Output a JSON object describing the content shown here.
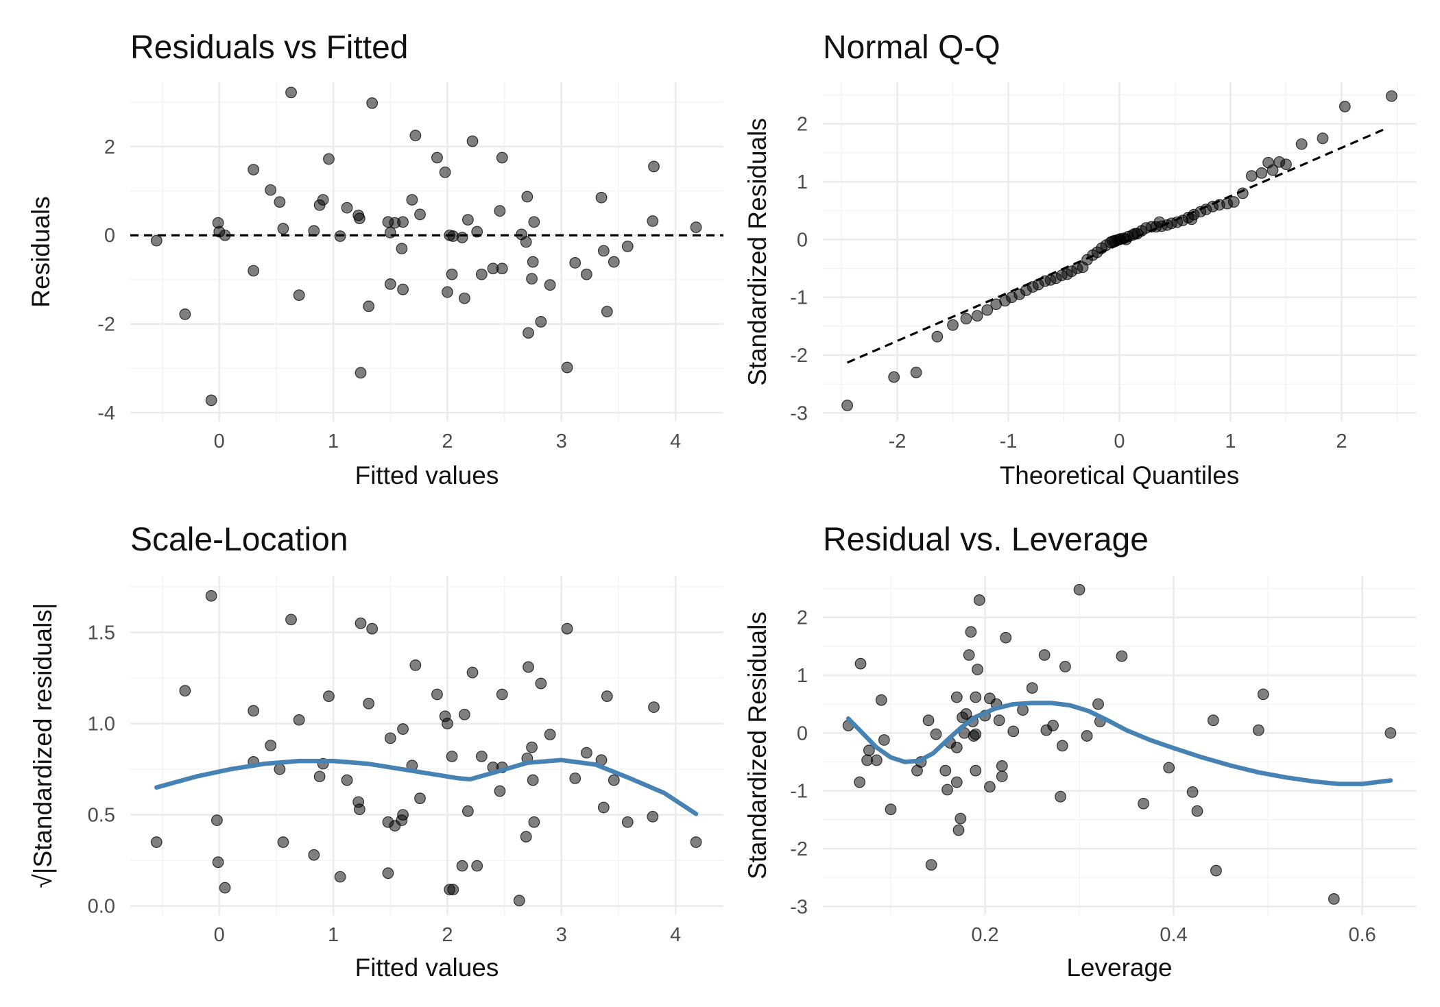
{
  "chart_data": [
    {
      "type": "scatter",
      "title": "Residuals vs Fitted",
      "xlabel": "Fitted values",
      "ylabel": "Residuals",
      "xlim": [
        -0.78,
        4.42
      ],
      "ylim": [
        -4.2,
        3.45
      ],
      "xticks": [
        0,
        1,
        2,
        3,
        4
      ],
      "xtick_labels": [
        "0",
        "1",
        "2",
        "3",
        "4"
      ],
      "yticks": [
        -4,
        -2,
        0,
        2
      ],
      "ytick_labels": [
        "-4",
        "-2",
        "0",
        "2"
      ],
      "grid": true,
      "hline": {
        "y": 0,
        "style": "dashed"
      },
      "point_color": "#000000",
      "points": [
        [
          -0.55,
          -0.12
        ],
        [
          -0.3,
          -1.78
        ],
        [
          -0.07,
          -3.72
        ],
        [
          -0.01,
          0.28
        ],
        [
          0.0,
          0.08
        ],
        [
          0.05,
          0.0
        ],
        [
          0.3,
          1.48
        ],
        [
          0.3,
          -0.8
        ],
        [
          0.45,
          1.02
        ],
        [
          0.53,
          0.75
        ],
        [
          0.56,
          0.15
        ],
        [
          0.63,
          3.22
        ],
        [
          0.7,
          -1.35
        ],
        [
          0.83,
          0.1
        ],
        [
          0.88,
          0.68
        ],
        [
          0.91,
          0.8
        ],
        [
          0.96,
          1.72
        ],
        [
          1.06,
          -0.02
        ],
        [
          1.12,
          0.62
        ],
        [
          1.22,
          0.45
        ],
        [
          1.23,
          0.38
        ],
        [
          1.24,
          -3.1
        ],
        [
          1.31,
          -1.6
        ],
        [
          1.34,
          2.98
        ],
        [
          1.48,
          0.3
        ],
        [
          1.5,
          0.06
        ],
        [
          1.5,
          -1.1
        ],
        [
          1.54,
          0.28
        ],
        [
          1.6,
          -0.3
        ],
        [
          1.61,
          0.3
        ],
        [
          1.61,
          -1.22
        ],
        [
          1.69,
          0.8
        ],
        [
          1.72,
          2.25
        ],
        [
          1.76,
          0.47
        ],
        [
          1.91,
          1.75
        ],
        [
          1.98,
          1.42
        ],
        [
          2.0,
          -1.28
        ],
        [
          2.02,
          0.0
        ],
        [
          2.04,
          -0.88
        ],
        [
          2.05,
          -0.02
        ],
        [
          2.13,
          -0.05
        ],
        [
          2.15,
          -1.42
        ],
        [
          2.18,
          0.35
        ],
        [
          2.22,
          2.12
        ],
        [
          2.26,
          0.08
        ],
        [
          2.3,
          -0.88
        ],
        [
          2.4,
          -0.75
        ],
        [
          2.46,
          0.55
        ],
        [
          2.48,
          -0.75
        ],
        [
          2.48,
          1.75
        ],
        [
          2.65,
          0.02
        ],
        [
          2.69,
          -0.15
        ],
        [
          2.7,
          0.87
        ],
        [
          2.71,
          -2.2
        ],
        [
          2.74,
          -0.98
        ],
        [
          2.75,
          -0.6
        ],
        [
          2.76,
          0.3
        ],
        [
          2.82,
          -1.95
        ],
        [
          2.9,
          -1.12
        ],
        [
          3.05,
          -2.98
        ],
        [
          3.12,
          -0.62
        ],
        [
          3.22,
          -0.88
        ],
        [
          3.35,
          0.85
        ],
        [
          3.37,
          -0.35
        ],
        [
          3.4,
          -1.72
        ],
        [
          3.46,
          -0.6
        ],
        [
          3.58,
          -0.25
        ],
        [
          3.8,
          0.32
        ],
        [
          3.81,
          1.55
        ],
        [
          4.18,
          0.18
        ]
      ]
    },
    {
      "type": "scatter",
      "title": "Normal Q-Q",
      "xlabel": "Theoretical Quantiles",
      "ylabel": "Standardized Residuals",
      "xlim": [
        -2.67,
        2.67
      ],
      "ylim": [
        -3.15,
        2.72
      ],
      "xticks": [
        -2,
        -1,
        0,
        1,
        2
      ],
      "xtick_labels": [
        "-2",
        "-1",
        "0",
        "1",
        "2"
      ],
      "yticks": [
        -3,
        -2,
        -1,
        0,
        1,
        2
      ],
      "ytick_labels": [
        "-3",
        "-2",
        "-1",
        "0",
        "1",
        "2"
      ],
      "grid": true,
      "refline": {
        "x1": -2.45,
        "y1": -2.13,
        "x2": 2.4,
        "y2": 1.92,
        "style": "dashed"
      },
      "points": [
        [
          -2.45,
          -2.87
        ],
        [
          -2.03,
          -2.38
        ],
        [
          -1.83,
          -2.3
        ],
        [
          -1.64,
          -1.68
        ],
        [
          -1.5,
          -1.48
        ],
        [
          -1.38,
          -1.37
        ],
        [
          -1.28,
          -1.32
        ],
        [
          -1.19,
          -1.22
        ],
        [
          -1.11,
          -1.12
        ],
        [
          -1.03,
          -1.06
        ],
        [
          -0.97,
          -1.0
        ],
        [
          -0.9,
          -0.95
        ],
        [
          -0.84,
          -0.88
        ],
        [
          -0.78,
          -0.82
        ],
        [
          -0.73,
          -0.78
        ],
        [
          -0.67,
          -0.72
        ],
        [
          -0.62,
          -0.7
        ],
        [
          -0.57,
          -0.67
        ],
        [
          -0.52,
          -0.62
        ],
        [
          -0.47,
          -0.6
        ],
        [
          -0.43,
          -0.55
        ],
        [
          -0.38,
          -0.5
        ],
        [
          -0.33,
          -0.48
        ],
        [
          -0.29,
          -0.35
        ],
        [
          -0.24,
          -0.27
        ],
        [
          -0.2,
          -0.22
        ],
        [
          -0.16,
          -0.15
        ],
        [
          -0.12,
          -0.1
        ],
        [
          -0.08,
          -0.05
        ],
        [
          -0.04,
          -0.02
        ],
        [
          0.0,
          0.0
        ],
        [
          0.04,
          0.02
        ],
        [
          0.08,
          0.05
        ],
        [
          0.12,
          0.08
        ],
        [
          0.16,
          0.1
        ],
        [
          0.2,
          0.15
        ],
        [
          0.24,
          0.2
        ],
        [
          0.29,
          0.22
        ],
        [
          0.33,
          0.22
        ],
        [
          0.38,
          0.23
        ],
        [
          0.43,
          0.25
        ],
        [
          0.47,
          0.28
        ],
        [
          0.52,
          0.3
        ],
        [
          0.57,
          0.33
        ],
        [
          0.62,
          0.38
        ],
        [
          0.67,
          0.43
        ],
        [
          0.73,
          0.48
        ],
        [
          0.78,
          0.52
        ],
        [
          0.84,
          0.57
        ],
        [
          0.9,
          0.6
        ],
        [
          0.97,
          0.62
        ],
        [
          1.03,
          0.65
        ],
        [
          1.11,
          0.8
        ],
        [
          1.19,
          1.1
        ],
        [
          1.28,
          1.15
        ],
        [
          1.38,
          1.2
        ],
        [
          1.5,
          1.3
        ],
        [
          1.64,
          1.65
        ],
        [
          1.83,
          1.75
        ],
        [
          2.03,
          2.3
        ],
        [
          2.45,
          2.48
        ],
        [
          1.44,
          1.34
        ],
        [
          1.34,
          1.33
        ],
        [
          -0.02,
          -0.01
        ],
        [
          0.01,
          0.01
        ],
        [
          0.36,
          0.3
        ],
        [
          0.06,
          0.0
        ],
        [
          -0.06,
          -0.03
        ],
        [
          0.14,
          0.1
        ],
        [
          0.65,
          0.35
        ]
      ]
    },
    {
      "type": "scatter",
      "title": "Scale-Location",
      "xlabel": "Fitted values",
      "ylabel": "√|Standardized residuals|",
      "xlim": [
        -0.78,
        4.42
      ],
      "ylim": [
        -0.05,
        1.81
      ],
      "xticks": [
        0,
        1,
        2,
        3,
        4
      ],
      "xtick_labels": [
        "0",
        "1",
        "2",
        "3",
        "4"
      ],
      "yticks": [
        0.0,
        0.5,
        1.0,
        1.5
      ],
      "ytick_labels": [
        "0.0",
        "0.5",
        "1.0",
        "1.5"
      ],
      "grid": true,
      "smooth": [
        [
          -0.55,
          0.65
        ],
        [
          -0.2,
          0.71
        ],
        [
          0.1,
          0.75
        ],
        [
          0.4,
          0.78
        ],
        [
          0.7,
          0.795
        ],
        [
          1.0,
          0.795
        ],
        [
          1.3,
          0.78
        ],
        [
          1.6,
          0.75
        ],
        [
          1.9,
          0.72
        ],
        [
          2.1,
          0.7
        ],
        [
          2.2,
          0.695
        ],
        [
          2.4,
          0.73
        ],
        [
          2.7,
          0.785
        ],
        [
          3.0,
          0.8
        ],
        [
          3.3,
          0.775
        ],
        [
          3.6,
          0.7
        ],
        [
          3.9,
          0.62
        ],
        [
          4.18,
          0.505
        ]
      ],
      "smooth_color": "#4682b4",
      "points": [
        [
          -0.55,
          0.35
        ],
        [
          -0.3,
          1.18
        ],
        [
          -0.07,
          1.7
        ],
        [
          -0.02,
          0.47
        ],
        [
          -0.01,
          0.24
        ],
        [
          0.05,
          0.1
        ],
        [
          0.3,
          1.07
        ],
        [
          0.3,
          0.79
        ],
        [
          0.45,
          0.88
        ],
        [
          0.53,
          0.75
        ],
        [
          0.56,
          0.35
        ],
        [
          0.63,
          1.57
        ],
        [
          0.7,
          1.02
        ],
        [
          0.83,
          0.28
        ],
        [
          0.88,
          0.71
        ],
        [
          0.91,
          0.78
        ],
        [
          0.96,
          1.15
        ],
        [
          1.06,
          0.16
        ],
        [
          1.12,
          0.69
        ],
        [
          1.22,
          0.57
        ],
        [
          1.23,
          0.53
        ],
        [
          1.24,
          1.55
        ],
        [
          1.31,
          1.11
        ],
        [
          1.34,
          1.52
        ],
        [
          1.48,
          0.46
        ],
        [
          1.48,
          0.18
        ],
        [
          1.5,
          0.92
        ],
        [
          1.54,
          0.44
        ],
        [
          1.6,
          0.47
        ],
        [
          1.61,
          0.97
        ],
        [
          1.61,
          0.5
        ],
        [
          1.69,
          0.77
        ],
        [
          1.72,
          1.32
        ],
        [
          1.76,
          0.59
        ],
        [
          1.91,
          1.16
        ],
        [
          1.98,
          1.04
        ],
        [
          2.0,
          1.0
        ],
        [
          2.02,
          0.09
        ],
        [
          2.04,
          0.82
        ],
        [
          2.05,
          0.09
        ],
        [
          2.13,
          0.22
        ],
        [
          2.15,
          1.05
        ],
        [
          2.18,
          0.52
        ],
        [
          2.22,
          1.28
        ],
        [
          2.26,
          0.22
        ],
        [
          2.3,
          0.82
        ],
        [
          2.4,
          0.76
        ],
        [
          2.46,
          0.63
        ],
        [
          2.48,
          1.16
        ],
        [
          2.48,
          0.76
        ],
        [
          2.63,
          0.03
        ],
        [
          2.69,
          0.38
        ],
        [
          2.7,
          0.81
        ],
        [
          2.71,
          1.31
        ],
        [
          2.74,
          0.87
        ],
        [
          2.75,
          0.69
        ],
        [
          2.76,
          0.46
        ],
        [
          2.82,
          1.22
        ],
        [
          2.9,
          0.94
        ],
        [
          3.05,
          1.52
        ],
        [
          3.12,
          0.7
        ],
        [
          3.22,
          0.84
        ],
        [
          3.35,
          0.8
        ],
        [
          3.37,
          0.54
        ],
        [
          3.4,
          1.15
        ],
        [
          3.46,
          0.69
        ],
        [
          3.58,
          0.46
        ],
        [
          3.8,
          0.49
        ],
        [
          3.81,
          1.09
        ],
        [
          4.18,
          0.35
        ]
      ]
    },
    {
      "type": "scatter",
      "title": "Residual vs. Leverage",
      "xlabel": "Leverage",
      "ylabel": "Standardized Residuals",
      "xlim": [
        0.028,
        0.657
      ],
      "ylim": [
        -3.15,
        2.72
      ],
      "xticks": [
        0.2,
        0.4,
        0.6
      ],
      "xtick_labels": [
        "0.2",
        "0.4",
        "0.6"
      ],
      "yticks": [
        -3,
        -2,
        -1,
        0,
        1,
        2
      ],
      "ytick_labels": [
        "-3",
        "-2",
        "-1",
        "0",
        "1",
        "2"
      ],
      "grid": true,
      "smooth": [
        [
          0.055,
          0.25
        ],
        [
          0.07,
          0.0
        ],
        [
          0.085,
          -0.25
        ],
        [
          0.1,
          -0.42
        ],
        [
          0.115,
          -0.5
        ],
        [
          0.13,
          -0.48
        ],
        [
          0.145,
          -0.35
        ],
        [
          0.16,
          -0.12
        ],
        [
          0.175,
          0.1
        ],
        [
          0.19,
          0.28
        ],
        [
          0.21,
          0.42
        ],
        [
          0.23,
          0.5
        ],
        [
          0.25,
          0.52
        ],
        [
          0.27,
          0.52
        ],
        [
          0.29,
          0.48
        ],
        [
          0.31,
          0.38
        ],
        [
          0.33,
          0.22
        ],
        [
          0.35,
          0.05
        ],
        [
          0.375,
          -0.12
        ],
        [
          0.4,
          -0.26
        ],
        [
          0.43,
          -0.42
        ],
        [
          0.46,
          -0.56
        ],
        [
          0.49,
          -0.68
        ],
        [
          0.52,
          -0.77
        ],
        [
          0.55,
          -0.84
        ],
        [
          0.575,
          -0.88
        ],
        [
          0.6,
          -0.88
        ],
        [
          0.63,
          -0.82
        ]
      ],
      "smooth_color": "#4682b4",
      "points": [
        [
          0.055,
          0.13
        ],
        [
          0.067,
          -0.85
        ],
        [
          0.068,
          1.2
        ],
        [
          0.075,
          -0.47
        ],
        [
          0.077,
          -0.3
        ],
        [
          0.085,
          -0.47
        ],
        [
          0.09,
          0.57
        ],
        [
          0.093,
          -0.12
        ],
        [
          0.1,
          -1.32
        ],
        [
          0.128,
          -0.65
        ],
        [
          0.132,
          -0.5
        ],
        [
          0.14,
          0.22
        ],
        [
          0.143,
          -2.28
        ],
        [
          0.148,
          -0.02
        ],
        [
          0.158,
          -0.65
        ],
        [
          0.16,
          -0.98
        ],
        [
          0.163,
          -0.17
        ],
        [
          0.17,
          0.62
        ],
        [
          0.17,
          -0.85
        ],
        [
          0.17,
          -0.25
        ],
        [
          0.172,
          -1.68
        ],
        [
          0.174,
          -1.48
        ],
        [
          0.176,
          0.27
        ],
        [
          0.178,
          0.0
        ],
        [
          0.18,
          0.33
        ],
        [
          0.183,
          1.35
        ],
        [
          0.185,
          1.75
        ],
        [
          0.187,
          0.2
        ],
        [
          0.188,
          -0.05
        ],
        [
          0.19,
          -0.02
        ],
        [
          0.19,
          -0.65
        ],
        [
          0.19,
          0.62
        ],
        [
          0.192,
          1.1
        ],
        [
          0.194,
          2.3
        ],
        [
          0.2,
          0.3
        ],
        [
          0.205,
          0.6
        ],
        [
          0.205,
          -0.93
        ],
        [
          0.212,
          0.5
        ],
        [
          0.215,
          0.22
        ],
        [
          0.218,
          -0.75
        ],
        [
          0.218,
          -0.57
        ],
        [
          0.222,
          1.65
        ],
        [
          0.23,
          0.03
        ],
        [
          0.24,
          0.4
        ],
        [
          0.25,
          0.78
        ],
        [
          0.263,
          1.35
        ],
        [
          0.265,
          0.05
        ],
        [
          0.272,
          0.13
        ],
        [
          0.28,
          -1.1
        ],
        [
          0.282,
          -0.22
        ],
        [
          0.285,
          1.15
        ],
        [
          0.3,
          2.48
        ],
        [
          0.308,
          -0.05
        ],
        [
          0.32,
          0.5
        ],
        [
          0.322,
          0.2
        ],
        [
          0.345,
          1.33
        ],
        [
          0.368,
          -1.22
        ],
        [
          0.395,
          -0.6
        ],
        [
          0.42,
          -1.02
        ],
        [
          0.425,
          -1.35
        ],
        [
          0.442,
          0.22
        ],
        [
          0.445,
          -2.38
        ],
        [
          0.49,
          0.05
        ],
        [
          0.495,
          0.67
        ],
        [
          0.57,
          -2.87
        ],
        [
          0.63,
          0.0
        ]
      ]
    }
  ]
}
